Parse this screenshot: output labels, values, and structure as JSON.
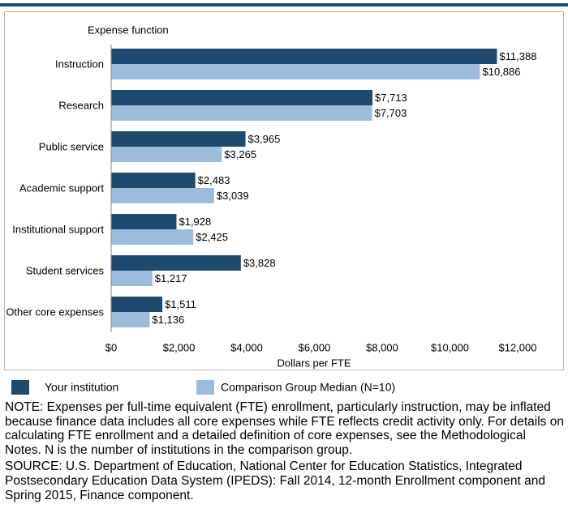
{
  "chart_data": {
    "type": "bar",
    "y_axis_title": "Expense function",
    "x_axis_title": "Dollars per FTE",
    "categories": [
      "Instruction",
      "Research",
      "Public service",
      "Academic support",
      "Institutional support",
      "Student services",
      "Other core expenses"
    ],
    "series": [
      {
        "name": "Your institution",
        "color": "#1d4a6e",
        "values": [
          11388,
          7713,
          3965,
          2483,
          1928,
          3828,
          1511
        ],
        "value_labels": [
          "$11,388",
          "$7,713",
          "$3,965",
          "$2,483",
          "$1,928",
          "$3,828",
          "$1,511"
        ]
      },
      {
        "name": "Comparison Group Median (N=10)",
        "color": "#9dbcdb",
        "values": [
          10886,
          7703,
          3265,
          3039,
          2425,
          1217,
          1136
        ],
        "value_labels": [
          "$10,886",
          "$7,703",
          "$3,265",
          "$3,039",
          "$2,425",
          "$1,217",
          "$1,136"
        ]
      }
    ],
    "xlim": [
      0,
      12000
    ],
    "xticks": [
      {
        "value": 0,
        "label": "$0"
      },
      {
        "value": 2000,
        "label": "$2,000"
      },
      {
        "value": 4000,
        "label": "$4,000"
      },
      {
        "value": 6000,
        "label": "$6,000"
      },
      {
        "value": 8000,
        "label": "$8,000"
      },
      {
        "value": 10000,
        "label": "$10,000"
      },
      {
        "value": 12000,
        "label": "$12,000"
      }
    ],
    "grid": false,
    "notes": [
      "NOTE: Expenses per full-time equivalent (FTE) enrollment, particularly instruction, may be inflated because finance data includes all core expenses while FTE reflects credit activity only. For details on calculating FTE enrollment and a detailed definition of core expenses, see the Methodological Notes. N is the number of institutions in the comparison group.",
      "SOURCE: U.S. Department of Education, National Center for Education Statistics, Integrated Postsecondary Education Data System (IPEDS): Fall 2014, 12-month Enrollment component and Spring 2015, Finance component."
    ]
  }
}
